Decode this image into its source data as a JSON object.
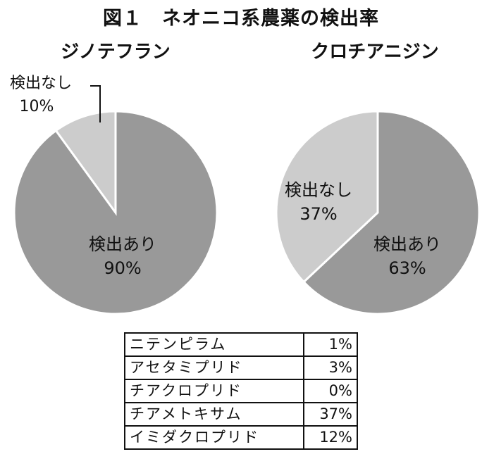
{
  "figure": {
    "title": "図１　ネオニコ系農薬の検出率"
  },
  "chart_data": [
    {
      "type": "pie",
      "title": "ジノテフラン",
      "slices": [
        {
          "label": "検出あり",
          "value": 90,
          "value_label": "90%",
          "color": "#999999"
        },
        {
          "label": "検出なし",
          "value": 10,
          "value_label": "10%",
          "color": "#cccccc"
        }
      ]
    },
    {
      "type": "pie",
      "title": "クロチアニジン",
      "slices": [
        {
          "label": "検出あり",
          "value": 63,
          "value_label": "63%",
          "color": "#999999"
        },
        {
          "label": "検出なし",
          "value": 37,
          "value_label": "37%",
          "color": "#cccccc"
        }
      ]
    },
    {
      "type": "table",
      "rows": [
        {
          "name": "ニテンピラム",
          "pct": "1%"
        },
        {
          "name": "アセタミプリド",
          "pct": "3%"
        },
        {
          "name": "チアクロプリド",
          "pct": "0%"
        },
        {
          "name": "チアメトキサム",
          "pct": "37%"
        },
        {
          "name": "イミダクロプリド",
          "pct": "12%"
        }
      ]
    }
  ]
}
